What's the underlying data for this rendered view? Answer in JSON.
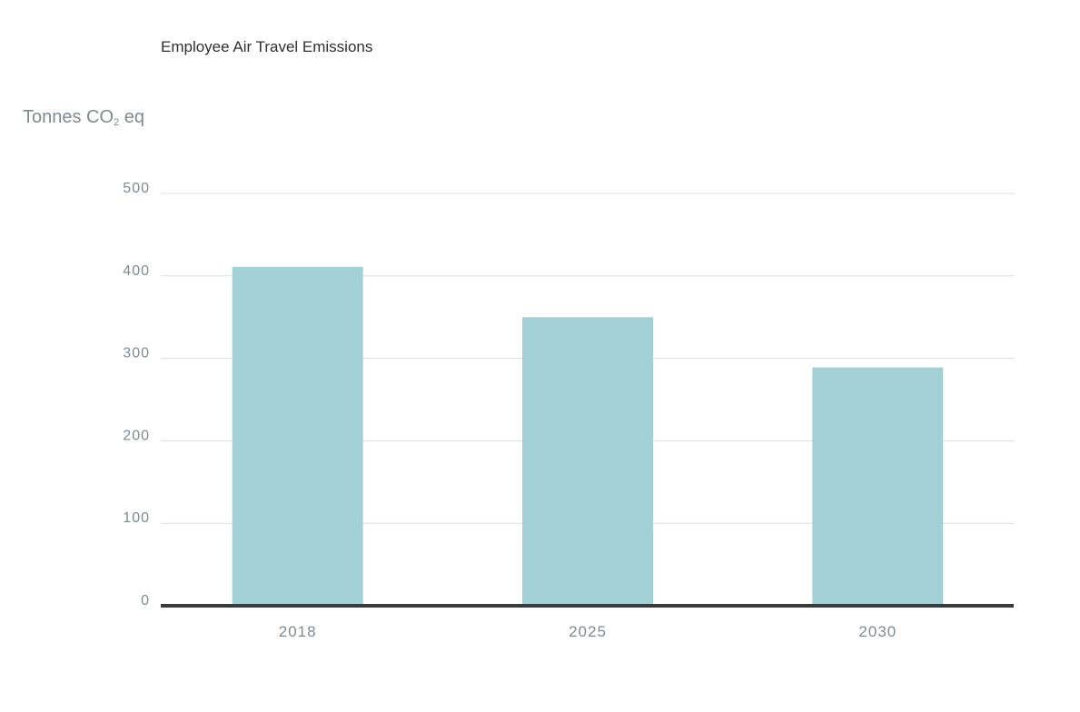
{
  "chart_data": {
    "type": "bar",
    "title": "Employee Air Travel Emissions",
    "ylabel_main": "Tonnes CO",
    "ylabel_sub": "2",
    "ylabel_tail": " eq",
    "xlabel": "",
    "categories": [
      "2018",
      "2025",
      "2030"
    ],
    "values": [
      411,
      350,
      289
    ],
    "ylim": [
      0,
      500
    ],
    "yticks": [
      0,
      100,
      200,
      300,
      400,
      500
    ],
    "grid": true,
    "bar_color": "#a3d0d6",
    "grid_color": "#dedede",
    "axis_color": "#3a3a3a"
  }
}
